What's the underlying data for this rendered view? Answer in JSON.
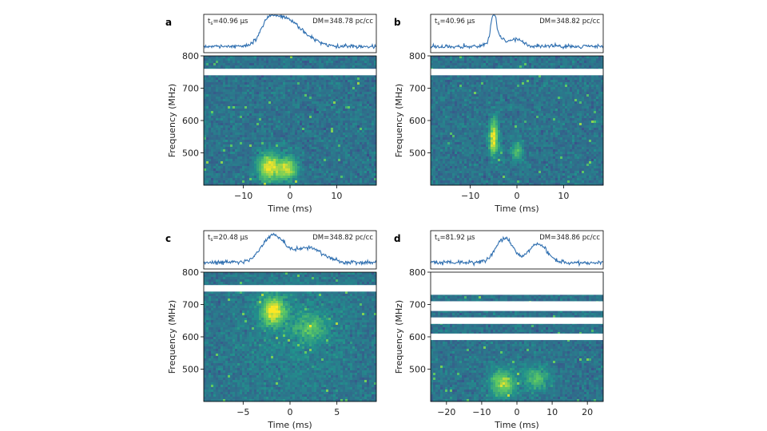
{
  "chart_data": [
    {
      "type": "heatmap",
      "panel_label": "a",
      "sampling_annotation": "t",
      "sampling_subscript": "s",
      "sampling_value": "=40.96 μs",
      "dm_annotation": "DM=348.78 pc/cc",
      "xlabel": "Time (ms)",
      "ylabel": "Frequency (MHz)",
      "xlim": [
        -18.5,
        18.5
      ],
      "ylim": [
        400,
        800
      ],
      "xticks": [
        -10,
        0,
        10
      ],
      "xtick_labels": [
        "−10",
        "0",
        "10"
      ],
      "yticks": [
        500,
        600,
        700,
        800
      ],
      "ytick_labels": [
        "500",
        "600",
        "700",
        "800"
      ],
      "masked_bands_mhz": [
        [
          740,
          760
        ]
      ],
      "profile_peaks": [
        {
          "t": -4.5,
          "a": 0.95,
          "w": 1.8
        },
        {
          "t": -1.0,
          "a": 0.75,
          "w": 2.0
        },
        {
          "t": 2.5,
          "a": 0.45,
          "w": 2.5
        }
      ],
      "emission_regions": [
        {
          "t": -4.5,
          "f": 455,
          "dt": 1.6,
          "df": 30,
          "a": 1.0
        },
        {
          "t": -0.5,
          "f": 450,
          "dt": 1.4,
          "df": 25,
          "a": 0.85
        }
      ]
    },
    {
      "type": "heatmap",
      "panel_label": "b",
      "sampling_annotation": "t",
      "sampling_subscript": "s",
      "sampling_value": "=40.96 μs",
      "dm_annotation": "DM=348.82 pc/cc",
      "xlabel": "Time (ms)",
      "ylabel": "Frequency (MHz)",
      "xlim": [
        -18.5,
        18.5
      ],
      "ylim": [
        400,
        800
      ],
      "xticks": [
        -10,
        0,
        10
      ],
      "xtick_labels": [
        "−10",
        "0",
        "10"
      ],
      "yticks": [
        500,
        600,
        700,
        800
      ],
      "ytick_labels": [
        "500",
        "600",
        "700",
        "800"
      ],
      "masked_bands_mhz": [
        [
          740,
          760
        ]
      ],
      "profile_peaks": [
        {
          "t": -5.0,
          "a": 1.0,
          "w": 0.6
        },
        {
          "t": -4.0,
          "a": 0.3,
          "w": 1.5
        },
        {
          "t": 0.0,
          "a": 0.25,
          "w": 1.2
        }
      ],
      "emission_regions": [
        {
          "t": -5.0,
          "f": 545,
          "dt": 0.7,
          "df": 38,
          "a": 1.0
        },
        {
          "t": 0.0,
          "f": 505,
          "dt": 0.8,
          "df": 20,
          "a": 0.55
        }
      ]
    },
    {
      "type": "heatmap",
      "panel_label": "c",
      "sampling_annotation": "t",
      "sampling_subscript": "s",
      "sampling_value": "=20.48 μs",
      "dm_annotation": "DM=348.82 pc/cc",
      "xlabel": "Time (ms)",
      "ylabel": "Frequency (MHz)",
      "xlim": [
        -9.2,
        9.2
      ],
      "ylim": [
        400,
        800
      ],
      "xticks": [
        -5,
        0,
        5
      ],
      "xtick_labels": [
        "−5",
        "0",
        "5"
      ],
      "yticks": [
        500,
        600,
        700,
        800
      ],
      "ytick_labels": [
        "500",
        "600",
        "700",
        "800"
      ],
      "masked_bands_mhz": [
        [
          740,
          760
        ]
      ],
      "profile_peaks": [
        {
          "t": -1.8,
          "a": 1.0,
          "w": 1.2
        },
        {
          "t": 2.0,
          "a": 0.55,
          "w": 1.5
        }
      ],
      "emission_regions": [
        {
          "t": -1.8,
          "f": 680,
          "dt": 0.9,
          "df": 30,
          "a": 1.0
        },
        {
          "t": 2.2,
          "f": 630,
          "dt": 1.2,
          "df": 30,
          "a": 0.45
        },
        {
          "t": 0.5,
          "f": 600,
          "dt": 4.5,
          "df": 120,
          "a": 0.12
        }
      ]
    },
    {
      "type": "heatmap",
      "panel_label": "d",
      "sampling_annotation": "t",
      "sampling_subscript": "s",
      "sampling_value": "=81.92 μs",
      "dm_annotation": "DM=348.86 pc/cc",
      "xlabel": "Time (ms)",
      "ylabel": "Frequency (MHz)",
      "xlim": [
        -24.5,
        24.5
      ],
      "ylim": [
        400,
        800
      ],
      "xticks": [
        -20,
        -10,
        0,
        10,
        20
      ],
      "xtick_labels": [
        "−20",
        "−10",
        "0",
        "10",
        "20"
      ],
      "yticks": [
        500,
        600,
        700,
        800
      ],
      "ytick_labels": [
        "500",
        "600",
        "700",
        "800"
      ],
      "masked_bands_mhz": [
        [
          730,
          800
        ],
        [
          680,
          710
        ],
        [
          640,
          660
        ],
        [
          590,
          610
        ]
      ],
      "profile_peaks": [
        {
          "t": -3.5,
          "a": 0.9,
          "w": 2.5
        },
        {
          "t": 6.0,
          "a": 0.7,
          "w": 2.5
        }
      ],
      "emission_regions": [
        {
          "t": -4.0,
          "f": 455,
          "dt": 2.5,
          "df": 30,
          "a": 0.75
        },
        {
          "t": 5.5,
          "f": 470,
          "dt": 2.5,
          "df": 25,
          "a": 0.5
        }
      ]
    }
  ]
}
